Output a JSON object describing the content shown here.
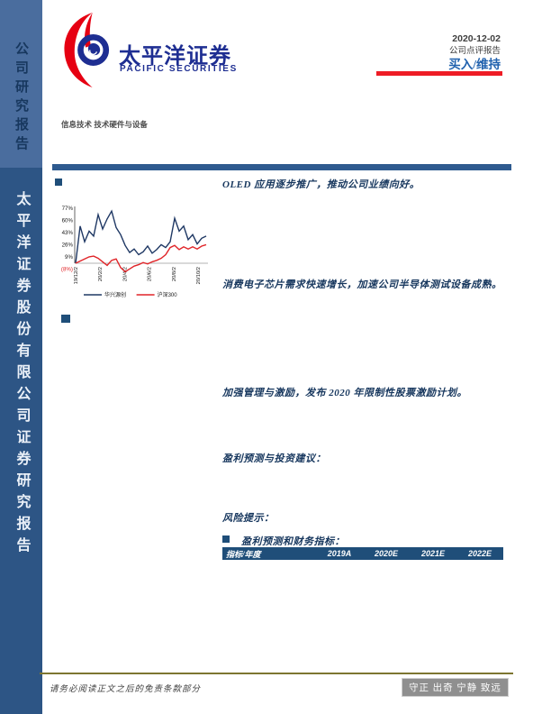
{
  "sidebar": {
    "top_label": "公司研究报告",
    "bottom_label": "太平洋证券股份有限公司证券研究报告"
  },
  "header": {
    "logo_cn": "太平洋证券",
    "logo_en": "PACIFIC SECURITIES",
    "date": "2020-12-02",
    "report_type": "公司点评报告",
    "rating": "买入/维持",
    "sector": "信息技术 技术硬件与设备",
    "colors": {
      "rating_blue": "#2061ae",
      "rating_underline_red": "#ee1c25",
      "logo_blue": "#1e2e92",
      "logo_red": "#e60012"
    }
  },
  "body": {
    "headings": {
      "oled": "OLED 应用逐步推广，推动公司业绩向好。",
      "chip": "消费电子芯片需求快速增长，加速公司半导体测试设备成熟。",
      "incentive": "加强管理与激励，发布 2020 年限制性股票激励计划。",
      "forecast": "盈利预测与投资建议：",
      "risk": "风险提示：",
      "table_title": "盈利预测和财务指标："
    }
  },
  "chart_data": {
    "type": "line",
    "title": "",
    "xlabel": "",
    "ylabel": "",
    "ylim": [
      -8,
      77
    ],
    "grid": false,
    "legend_position": "bottom",
    "yticks": {
      "values": [
        77,
        60,
        43,
        26,
        9,
        -8
      ],
      "labels": [
        "77%",
        "60%",
        "43%",
        "26%",
        "9%",
        "(8%)"
      ]
    },
    "xticks": [
      "19/12/2",
      "20/2/2",
      "20/4/2",
      "20/6/2",
      "20/8/2",
      "20/10/2"
    ],
    "series": [
      {
        "name": "华兴源创",
        "color": "#1f3864",
        "values": [
          0,
          52,
          30,
          45,
          38,
          68,
          48,
          62,
          73,
          50,
          40,
          25,
          15,
          20,
          12,
          16,
          24,
          14,
          19,
          26,
          22,
          30,
          63,
          45,
          52,
          33,
          40,
          27,
          35,
          38
        ]
      },
      {
        "name": "沪深300",
        "color": "#e02428",
        "values": [
          0,
          3,
          6,
          9,
          10,
          7,
          2,
          -3,
          4,
          6,
          -6,
          -12,
          -8,
          -4,
          -2,
          1,
          -1,
          2,
          4,
          7,
          12,
          22,
          25,
          19,
          23,
          20,
          23,
          20,
          24,
          26
        ]
      }
    ]
  },
  "financial_table": {
    "header": [
      "指标/年度",
      "2019A",
      "2020E",
      "2021E",
      "2022E"
    ]
  },
  "footer": {
    "disclaimer": "请务必阅读正文之后的免责条款部分",
    "motto": "守正 出奇 宁静 致远"
  }
}
